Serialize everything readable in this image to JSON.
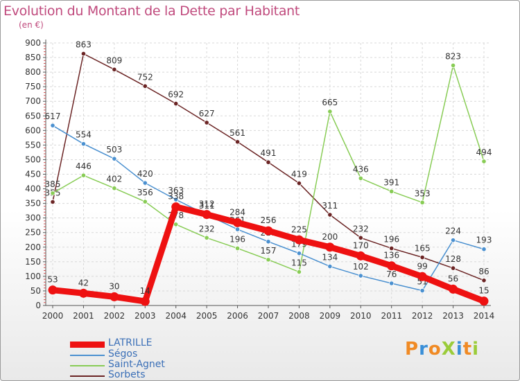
{
  "chart_data": {
    "type": "line",
    "title": "Evolution du Montant de la Dette par Habitant",
    "subtitle": "(en €)",
    "xlabel": "",
    "ylabel": "",
    "x": [
      "2000",
      "2001",
      "2002",
      "2003",
      "2004",
      "2005",
      "2006",
      "2007",
      "2008",
      "2009",
      "2010",
      "2011",
      "2012",
      "2013",
      "2014"
    ],
    "yticks": [
      0,
      50,
      100,
      150,
      200,
      250,
      300,
      350,
      400,
      450,
      500,
      550,
      600,
      650,
      700,
      750,
      800,
      850,
      900
    ],
    "ylim": [
      0,
      900
    ],
    "grid": true,
    "legend_position": "bottom-left",
    "series": [
      {
        "name": "LATRILLE",
        "color": "#ee1111",
        "values": [
          53,
          42,
          30,
          14,
          338,
          312,
          284,
          256,
          225,
          200,
          170,
          136,
          99,
          56,
          15
        ],
        "labels": [
          "53",
          "42",
          "30",
          "14",
          "338",
          "312",
          "284",
          "256",
          "225",
          "200",
          "170",
          "136",
          "99",
          "56",
          "15"
        ]
      },
      {
        "name": "Ségos",
        "color": "#4a90d0",
        "values": [
          617,
          554,
          503,
          420,
          363,
          311,
          261,
          219,
          179,
          134,
          102,
          76,
          51,
          224,
          193
        ],
        "labels": [
          "617",
          "554",
          "503",
          "420",
          "363",
          "311",
          "261",
          "219",
          "179",
          "134",
          "102",
          "76",
          "51",
          "224",
          "193"
        ]
      },
      {
        "name": "Saint-Agnet",
        "color": "#88cc55",
        "values": [
          385,
          446,
          402,
          356,
          278,
          232,
          196,
          157,
          115,
          665,
          436,
          391,
          353,
          823,
          494
        ],
        "labels": [
          "385",
          "446",
          "402",
          "356",
          "278",
          "232",
          "196",
          "157",
          "115",
          "665",
          "436",
          "391",
          "353",
          "823",
          "494"
        ]
      },
      {
        "name": "Sorbets",
        "color": "#6b2424",
        "values": [
          355,
          863,
          809,
          752,
          692,
          627,
          561,
          491,
          419,
          311,
          232,
          196,
          165,
          128,
          86
        ],
        "labels": [
          "355",
          "863",
          "809",
          "752",
          "692",
          "627",
          "561",
          "491",
          "419",
          "311",
          "232",
          "196",
          "165",
          "128",
          "86"
        ]
      }
    ]
  },
  "brand": {
    "text": "ProXiti",
    "colors": [
      "#f08a24",
      "#3a8fd8",
      "#f08a24",
      "#9bcc3a",
      "#3a8fd8",
      "#f08a24",
      "#9bcc3a"
    ]
  }
}
